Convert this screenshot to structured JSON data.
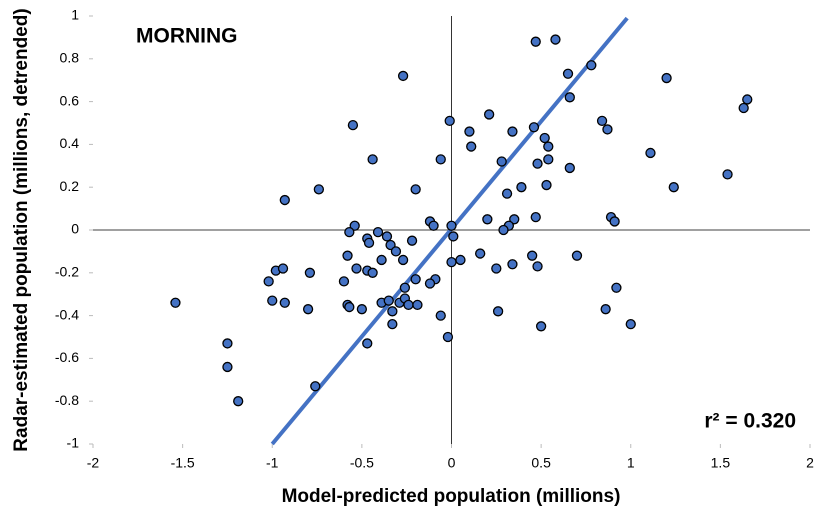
{
  "chart_data": {
    "type": "scatter",
    "title": "MORNING",
    "x_label": "Model-predicted population (millions)",
    "y_label": "Radar-estimated population (millions, detrended)",
    "annotation": "r² = 0.320",
    "xlim": [
      -2,
      2
    ],
    "ylim": [
      -1,
      1
    ],
    "xticks": [
      -2,
      -1.5,
      -1,
      -0.5,
      0,
      0.5,
      1,
      1.5,
      2
    ],
    "yticks": [
      -1,
      -0.8,
      -0.6,
      -0.4,
      -0.2,
      0,
      0.2,
      0.4,
      0.6,
      0.8,
      1
    ],
    "trendline": {
      "color": "#4472c4",
      "x": [
        -1,
        0.98
      ],
      "y": [
        -1,
        0.99
      ]
    },
    "series": [
      {
        "color": "#4472c4",
        "x": [
          0.47,
          0.58,
          0.65,
          0.78,
          1.2,
          -0.27,
          1.65,
          1.63,
          0.84,
          0.87,
          0.66,
          -0.01,
          0.21,
          -0.55,
          0.46,
          0.52,
          0.1,
          0.34,
          0.54,
          0.11,
          1.11,
          -0.44,
          -0.06,
          0.54,
          0.48,
          0.28,
          0.66,
          1.54,
          1.24,
          0.53,
          -0.74,
          -0.2,
          0.39,
          0.31,
          -0.93,
          0.89,
          0.91,
          0.47,
          0.2,
          0.35,
          0.32,
          0.29,
          -0.54,
          -0.12,
          -0.1,
          0.0,
          0.01,
          -0.57,
          -0.41,
          -0.47,
          -0.36,
          -0.46,
          -0.22,
          -0.34,
          -0.31,
          -0.58,
          0.45,
          0.16,
          0.7,
          -0.39,
          -0.27,
          0.05,
          0.0,
          0.34,
          0.25,
          0.48,
          -0.98,
          -0.94,
          -0.53,
          -0.47,
          -0.44,
          -0.79,
          -1.02,
          -0.2,
          -0.09,
          -0.12,
          0.92,
          -0.6,
          -0.26,
          -1.54,
          -1.0,
          -0.93,
          -0.39,
          -0.35,
          -0.29,
          -0.26,
          -0.24,
          -0.19,
          -0.58,
          -0.57,
          -0.5,
          -0.8,
          0.86,
          -0.33,
          0.26,
          -0.06,
          -0.33,
          1.0,
          0.5,
          -0.02,
          -0.47,
          -1.25,
          -1.25,
          -0.76,
          -1.19
        ],
        "values": [
          0.88,
          0.89,
          0.73,
          0.77,
          0.71,
          0.72,
          0.61,
          0.57,
          0.51,
          0.47,
          0.62,
          0.51,
          0.54,
          0.49,
          0.48,
          0.43,
          0.46,
          0.46,
          0.39,
          0.39,
          0.36,
          0.33,
          0.33,
          0.33,
          0.31,
          0.32,
          0.29,
          0.26,
          0.2,
          0.21,
          0.19,
          0.19,
          0.2,
          0.17,
          0.14,
          0.06,
          0.04,
          0.06,
          0.05,
          0.05,
          0.02,
          0.0,
          0.02,
          0.04,
          0.02,
          0.02,
          -0.03,
          -0.01,
          -0.01,
          -0.04,
          -0.03,
          -0.06,
          -0.05,
          -0.07,
          -0.1,
          -0.12,
          -0.12,
          -0.11,
          -0.12,
          -0.14,
          -0.14,
          -0.14,
          -0.15,
          -0.16,
          -0.18,
          -0.17,
          -0.19,
          -0.18,
          -0.18,
          -0.19,
          -0.2,
          -0.2,
          -0.24,
          -0.23,
          -0.23,
          -0.25,
          -0.27,
          -0.24,
          -0.27,
          -0.34,
          -0.33,
          -0.34,
          -0.34,
          -0.33,
          -0.34,
          -0.32,
          -0.35,
          -0.35,
          -0.35,
          -0.36,
          -0.37,
          -0.37,
          -0.37,
          -0.38,
          -0.38,
          -0.4,
          -0.44,
          -0.44,
          -0.45,
          -0.5,
          -0.53,
          -0.53,
          -0.64,
          -0.73,
          -0.8
        ]
      }
    ]
  }
}
